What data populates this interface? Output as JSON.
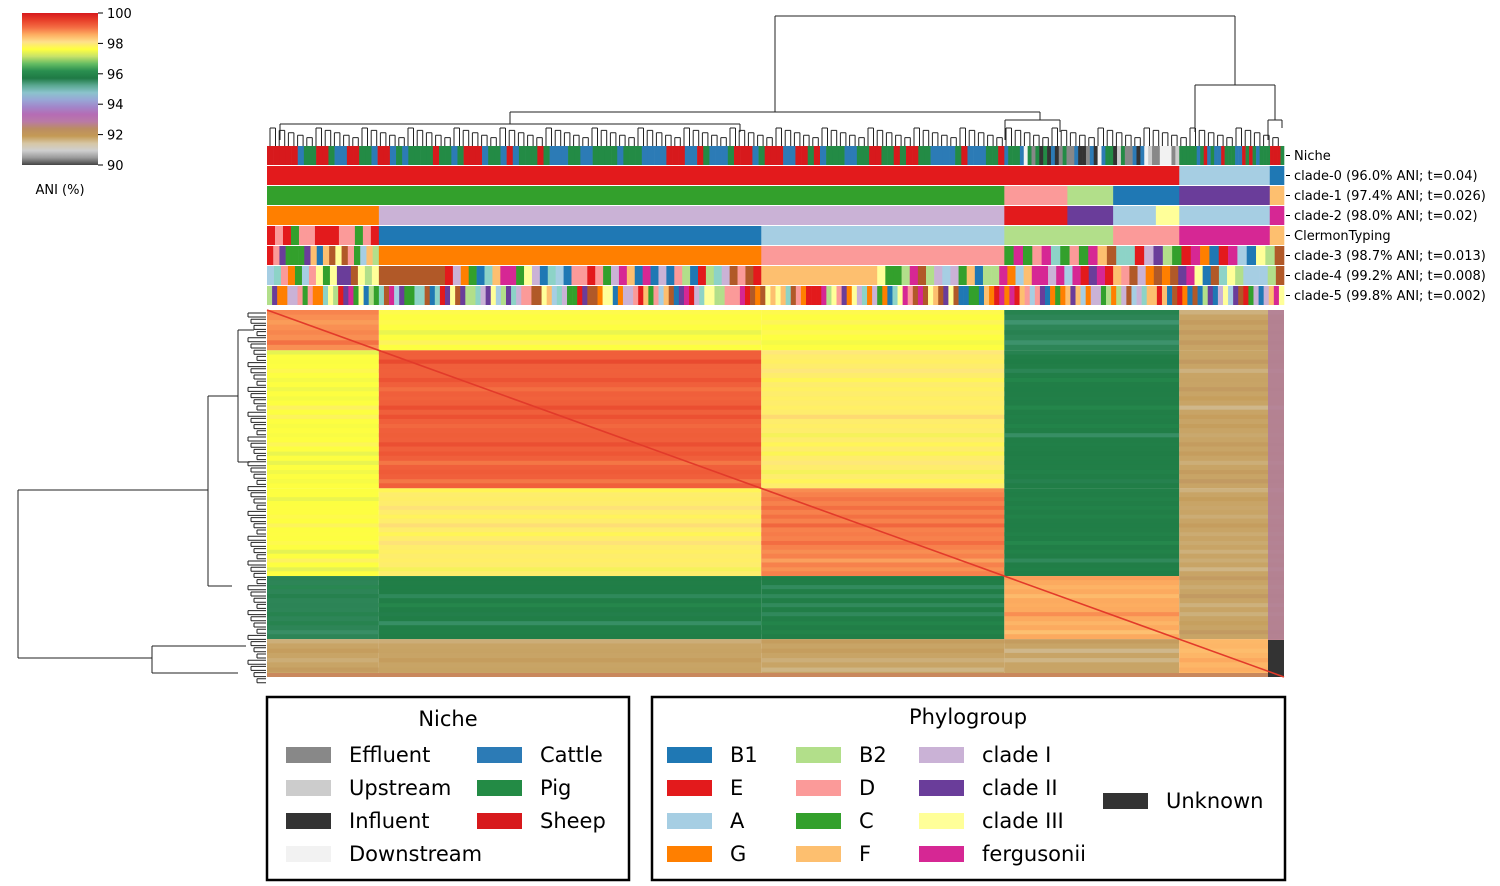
{
  "chart_data": {
    "type": "heatmap",
    "title": "",
    "colorbar": {
      "label": "ANI (%)",
      "ticks": [
        100,
        98,
        96,
        94,
        92,
        90
      ],
      "range": [
        90,
        100
      ],
      "stops": [
        "#d7191c",
        "#e8402a",
        "#f46d43",
        "#fdae61",
        "#fee08b",
        "#ffff3f",
        "#c7e26a",
        "#66bd63",
        "#2a8f50",
        "#1f7a45",
        "#5aa891",
        "#8bc3cc",
        "#98a7d6",
        "#a286c9",
        "#b56cb4",
        "#b97aa6",
        "#bb8d62",
        "#c49a55",
        "#d6c6a4",
        "#cfcfcf",
        "#9a9a9a",
        "#444444"
      ]
    },
    "row_labels": [
      "Niche",
      "clade-0 (96.0% ANI; t=0.04)",
      "clade-1 (97.4% ANI; t=0.026)",
      "clade-2 (98.0% ANI; t=0.02)",
      "ClermonTyping",
      "clade-3 (98.7% ANI; t=0.013)",
      "clade-4 (99.2% ANI; t=0.008)",
      "clade-5 (99.8% ANI; t=0.002)"
    ],
    "ani_blocks": [
      {
        "group": "A",
        "from": 0.0,
        "to": 0.11,
        "within": 98.8,
        "approx": true
      },
      {
        "group": "G",
        "from": 0.11,
        "to": 0.486,
        "within": 99.2,
        "approx": true
      },
      {
        "group": "D",
        "from": 0.486,
        "to": 0.725,
        "within": 98.9,
        "approx": true
      },
      {
        "group": "B2",
        "from": 0.725,
        "to": 0.897,
        "within": 98.6,
        "approx": true
      },
      {
        "group": "clade I",
        "from": 0.897,
        "to": 1.0,
        "within": 98.5,
        "approx": true
      }
    ]
  },
  "legends": {
    "niche": {
      "title": "Niche",
      "items": [
        {
          "label": "Effluent",
          "color": "#888888"
        },
        {
          "label": "Upstream",
          "color": "#cccccc"
        },
        {
          "label": "Influent",
          "color": "#333333"
        },
        {
          "label": "Downstream",
          "color": "#f2f2f2"
        },
        {
          "label": "Cattle",
          "color": "#2c7bb6"
        },
        {
          "label": "Pig",
          "color": "#238b45"
        },
        {
          "label": "Sheep",
          "color": "#d7191c"
        }
      ]
    },
    "phylogroup": {
      "title": "Phylogroup",
      "items": [
        {
          "label": "B1",
          "color": "#1f78b4"
        },
        {
          "label": "E",
          "color": "#e31a1c"
        },
        {
          "label": "A",
          "color": "#a6cee3"
        },
        {
          "label": "G",
          "color": "#ff7f00"
        },
        {
          "label": "B2",
          "color": "#b2df8a"
        },
        {
          "label": "D",
          "color": "#fb9a99"
        },
        {
          "label": "C",
          "color": "#33a02c"
        },
        {
          "label": "F",
          "color": "#fdbf6f"
        },
        {
          "label": "clade I",
          "color": "#cab2d6"
        },
        {
          "label": "clade II",
          "color": "#6a3d9a"
        },
        {
          "label": "clade III",
          "color": "#ffff99"
        },
        {
          "label": "fergusonii",
          "color": "#d62794"
        },
        {
          "label": "Unknown",
          "color": "#333333"
        }
      ]
    }
  }
}
